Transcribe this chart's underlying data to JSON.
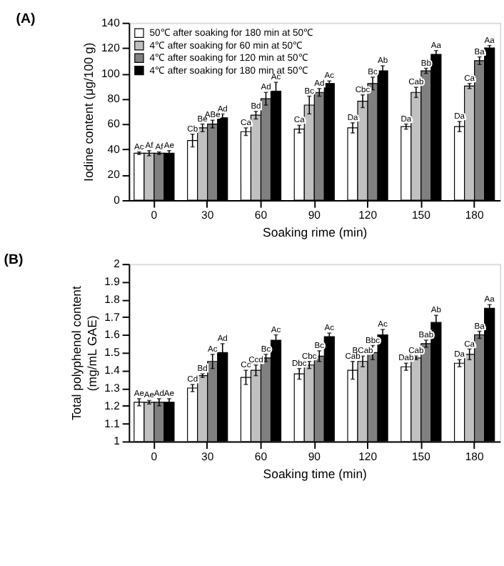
{
  "chart_data": [
    {
      "type": "bar",
      "title": "(A)",
      "xlabel": "Soaking rime (min)",
      "ylabel": "Iodine content (μg/100 g)",
      "categories": [
        "0",
        "30",
        "60",
        "90",
        "120",
        "150",
        "180"
      ],
      "ylim": [
        0,
        140
      ],
      "yticks": [
        0,
        20,
        40,
        60,
        80,
        100,
        120,
        140
      ],
      "grid": false,
      "legend": "top left",
      "series": [
        {
          "name": "50℃ after soaking for 180 min at 50℃",
          "color": "#ffffff",
          "values": [
            37,
            47,
            54,
            56,
            57,
            58,
            58
          ],
          "errors": [
            1,
            5,
            3,
            3,
            4,
            2,
            4
          ],
          "value_labels": [
            "Ac",
            "Cb",
            "Ca",
            "Ca",
            "Da",
            "Da",
            "Da"
          ]
        },
        {
          "name": "4℃ after soaking for 60 min at 50℃",
          "color": "#c0c0c0",
          "values": [
            37,
            57,
            67,
            75,
            78,
            85,
            90
          ],
          "errors": [
            2,
            3,
            3,
            7,
            5,
            4,
            2
          ],
          "value_labels": [
            "Af",
            "Be",
            "Bd",
            "Bc",
            "Cbc",
            "Cab",
            "Ca"
          ]
        },
        {
          "name": "4℃ after soaking for 120 min at 50℃",
          "color": "#808080",
          "values": [
            37,
            60,
            80,
            85,
            92,
            102,
            110
          ],
          "errors": [
            1,
            3,
            5,
            3,
            5,
            2,
            3
          ],
          "value_labels": [
            "Af",
            "ABe",
            "Ad",
            "Ad",
            "Bc",
            "Bb",
            "Ba"
          ]
        },
        {
          "name": "4℃ after soaking for 180 min at 50℃",
          "color": "#000000",
          "values": [
            37,
            65,
            86,
            92,
            102,
            115,
            120
          ],
          "errors": [
            2,
            3,
            7,
            2,
            4,
            3,
            2
          ],
          "value_labels": [
            "Ae",
            "Ad",
            "Ac",
            "Ac",
            "Ab",
            "Aa",
            "Aa"
          ]
        }
      ]
    },
    {
      "type": "bar",
      "title": "(B)",
      "xlabel": "Soaking time (min)",
      "ylabel": "Total polyphenol content\n(mg/mL GAE)",
      "categories": [
        "0",
        "30",
        "60",
        "90",
        "120",
        "150",
        "180"
      ],
      "ylim": [
        1,
        2
      ],
      "yticks": [
        1,
        1.1,
        1.2,
        1.3,
        1.4,
        1.5,
        1.6,
        1.7,
        1.8,
        1.9,
        2
      ],
      "grid": false,
      "legend": "top left",
      "series": [
        {
          "name": "50℃ after soaking for 180 min at 50℃",
          "color": "#ffffff",
          "values": [
            1.22,
            1.3,
            1.36,
            1.38,
            1.4,
            1.42,
            1.44
          ],
          "errors": [
            0.02,
            0.02,
            0.04,
            0.03,
            0.05,
            0.02,
            0.02
          ],
          "value_labels": [
            "Ae",
            "Cd",
            "Cc",
            "Dbc",
            "Cab",
            "Dab",
            "Da"
          ]
        },
        {
          "name": "4℃ after soaking for 60 min at 50℃",
          "color": "#c0c0c0",
          "values": [
            1.22,
            1.37,
            1.4,
            1.43,
            1.45,
            1.47,
            1.49
          ],
          "errors": [
            0.01,
            0.01,
            0.03,
            0.02,
            0.03,
            0.01,
            0.03
          ],
          "value_labels": [
            "Ae",
            "Bd",
            "Ccd",
            "Cbc",
            "BCab",
            "Cab",
            "Ca"
          ]
        },
        {
          "name": "4℃ after soaking for 120 min at 50℃",
          "color": "#808080",
          "values": [
            1.22,
            1.45,
            1.47,
            1.48,
            1.5,
            1.55,
            1.6
          ],
          "errors": [
            0.02,
            0.04,
            0.02,
            0.03,
            0.04,
            0.02,
            0.02
          ],
          "value_labels": [
            "Ad",
            "Ac",
            "Bc",
            "Bc",
            "Bbc",
            "Bab",
            "Ba"
          ]
        },
        {
          "name": "4℃ after soaking for 180 min at 50℃",
          "color": "#000000",
          "values": [
            1.22,
            1.5,
            1.57,
            1.59,
            1.6,
            1.67,
            1.75
          ],
          "errors": [
            0.02,
            0.05,
            0.03,
            0.02,
            0.03,
            0.04,
            0.02
          ],
          "value_labels": [
            "Ae",
            "Ad",
            "Ac",
            "Ac",
            "Ac",
            "Ab",
            "Aa"
          ]
        }
      ]
    }
  ]
}
